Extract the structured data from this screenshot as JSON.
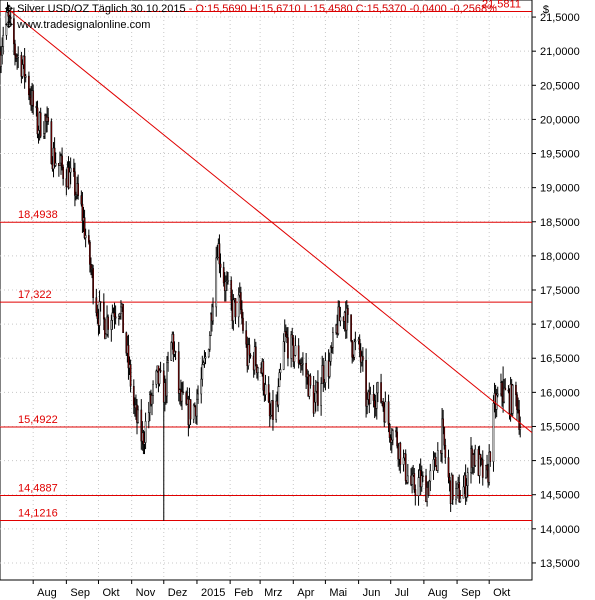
{
  "header": {
    "instrument": "Silver USD/OZ Täglich",
    "date": "30.10.2015",
    "ohlc": "- O:15,5690 H:15,6710 L:15,4580 C:15,5370 -0,0400 -0,2568%",
    "source": "www.tradesignalonline.com",
    "currency": "$"
  },
  "icons": {
    "instrument": "settings-icon",
    "source": "settings-icon"
  },
  "colors": {
    "candle_body": "#8b0000",
    "wick": "#000000",
    "levels": "#e00000",
    "trendline": "#e00000",
    "grid": "#c8c8c8",
    "background": "#ffffff"
  },
  "chart_data": {
    "type": "candlestick",
    "title": "Silver USD/OZ Täglich",
    "y_axis": {
      "min": 13.25,
      "max": 21.75,
      "unit": "$",
      "side": "right",
      "ticks": [
        "13,5000",
        "14,0000",
        "14,5000",
        "15,0000",
        "15,5000",
        "16,0000",
        "16,5000",
        "17,0000",
        "17,5000",
        "18,0000",
        "18,5000",
        "19,0000",
        "19,5000",
        "20,0000",
        "20,5000",
        "21,0000",
        "21,5000"
      ]
    },
    "x_axis": {
      "labels": [
        "Aug",
        "Sep",
        "Okt",
        "Nov",
        "Dez",
        "2015",
        "Feb",
        "Mrz",
        "Apr",
        "Mai",
        "Jun",
        "Jul",
        "Aug",
        "Sep",
        "Okt"
      ]
    },
    "grid": true,
    "levels": [
      {
        "label": "21,5811",
        "value": 21.5811
      },
      {
        "label": "18,4938",
        "value": 18.4938
      },
      {
        "label": "17,322",
        "value": 17.322
      },
      {
        "label": "15,4922",
        "value": 15.4922
      },
      {
        "label": "14,4887",
        "value": 14.4887
      },
      {
        "label": "14,1216",
        "value": 14.1216
      }
    ],
    "trendline": {
      "from": {
        "x": "2014-07-10",
        "y": 21.6
      },
      "to": {
        "x": "2015-10-30",
        "y": 15.55
      }
    },
    "series_points": [
      [
        "2014-07-01",
        21.0
      ],
      [
        "2014-07-08",
        21.5
      ],
      [
        "2014-07-15",
        21.0
      ],
      [
        "2014-07-22",
        20.8
      ],
      [
        "2014-07-29",
        20.4
      ],
      [
        "2014-08-05",
        19.9
      ],
      [
        "2014-08-12",
        20.0
      ],
      [
        "2014-08-19",
        19.5
      ],
      [
        "2014-08-26",
        19.3
      ],
      [
        "2014-09-02",
        19.2
      ],
      [
        "2014-09-09",
        19.0
      ],
      [
        "2014-09-16",
        18.6
      ],
      [
        "2014-09-23",
        17.9
      ],
      [
        "2014-09-30",
        17.2
      ],
      [
        "2014-10-07",
        17.0
      ],
      [
        "2014-10-14",
        17.2
      ],
      [
        "2014-10-21",
        17.3
      ],
      [
        "2014-10-28",
        16.5
      ],
      [
        "2014-11-04",
        15.7
      ],
      [
        "2014-11-11",
        15.3
      ],
      [
        "2014-11-18",
        15.8
      ],
      [
        "2014-11-25",
        16.2
      ],
      [
        "2014-12-02",
        16.0
      ],
      [
        "2014-12-09",
        16.8
      ],
      [
        "2014-12-16",
        15.9
      ],
      [
        "2014-12-23",
        15.7
      ],
      [
        "2014-12-30",
        15.8
      ],
      [
        "2015-01-06",
        16.2
      ],
      [
        "2015-01-13",
        16.9
      ],
      [
        "2015-01-20",
        18.2
      ],
      [
        "2015-01-27",
        17.6
      ],
      [
        "2015-02-03",
        17.2
      ],
      [
        "2015-02-10",
        17.3
      ],
      [
        "2015-02-17",
        16.5
      ],
      [
        "2015-02-24",
        16.5
      ],
      [
        "2015-03-03",
        16.3
      ],
      [
        "2015-03-10",
        15.6
      ],
      [
        "2015-03-17",
        15.8
      ],
      [
        "2015-03-24",
        16.8
      ],
      [
        "2015-03-31",
        16.6
      ],
      [
        "2015-04-07",
        16.5
      ],
      [
        "2015-04-14",
        16.2
      ],
      [
        "2015-04-21",
        15.8
      ],
      [
        "2015-04-28",
        16.3
      ],
      [
        "2015-05-05",
        16.4
      ],
      [
        "2015-05-12",
        17.0
      ],
      [
        "2015-05-19",
        17.2
      ],
      [
        "2015-05-26",
        16.7
      ],
      [
        "2015-06-02",
        16.6
      ],
      [
        "2015-06-09",
        15.8
      ],
      [
        "2015-06-16",
        16.0
      ],
      [
        "2015-06-23",
        15.9
      ],
      [
        "2015-06-30",
        15.5
      ],
      [
        "2015-07-07",
        15.3
      ],
      [
        "2015-07-14",
        14.9
      ],
      [
        "2015-07-21",
        14.6
      ],
      [
        "2015-07-28",
        14.7
      ],
      [
        "2015-08-04",
        14.6
      ],
      [
        "2015-08-11",
        14.9
      ],
      [
        "2015-08-18",
        15.4
      ],
      [
        "2015-08-25",
        14.6
      ],
      [
        "2015-09-01",
        14.5
      ],
      [
        "2015-09-08",
        14.6
      ],
      [
        "2015-09-15",
        15.1
      ],
      [
        "2015-09-22",
        14.9
      ],
      [
        "2015-09-29",
        14.7
      ],
      [
        "2015-10-06",
        15.8
      ],
      [
        "2015-10-13",
        16.0
      ],
      [
        "2015-10-20",
        15.9
      ],
      [
        "2015-10-27",
        15.9
      ],
      [
        "2015-10-30",
        15.54
      ]
    ]
  }
}
